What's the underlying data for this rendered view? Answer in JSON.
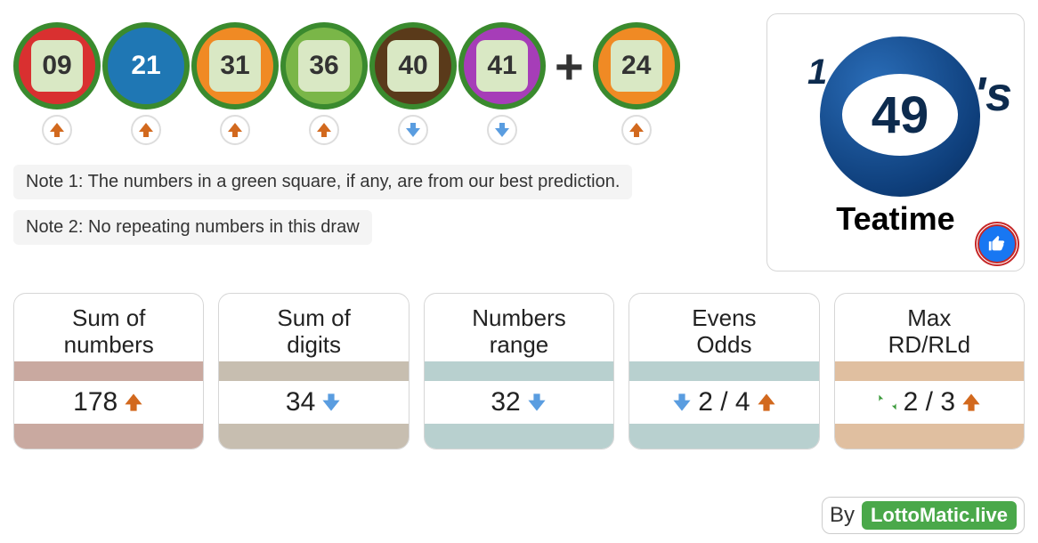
{
  "balls": [
    {
      "num": "09",
      "ring_color": "#3a8a2e",
      "fill_color": "#d93030",
      "square": true,
      "square_bg": "#d9e8c4",
      "text_color": "#333333",
      "arrow": "up"
    },
    {
      "num": "21",
      "ring_color": "#3a8a2e",
      "fill_color": "#1f77b4",
      "square": false,
      "text_color": "#ffffff",
      "arrow": "up"
    },
    {
      "num": "31",
      "ring_color": "#3a8a2e",
      "fill_color": "#f08a24",
      "square": true,
      "square_bg": "#d9e8c4",
      "text_color": "#333333",
      "arrow": "up"
    },
    {
      "num": "36",
      "ring_color": "#3a8a2e",
      "fill_color": "#7ab648",
      "square": true,
      "square_bg": "#d9e8c4",
      "text_color": "#333333",
      "arrow": "up"
    },
    {
      "num": "40",
      "ring_color": "#3a8a2e",
      "fill_color": "#5a3a1a",
      "square": true,
      "square_bg": "#d9e8c4",
      "text_color": "#333333",
      "arrow": "down"
    },
    {
      "num": "41",
      "ring_color": "#3a8a2e",
      "fill_color": "#a63db8",
      "square": true,
      "square_bg": "#d9e8c4",
      "text_color": "#333333",
      "arrow": "down"
    }
  ],
  "bonus_ball": {
    "num": "24",
    "ring_color": "#3a8a2e",
    "fill_color": "#f08a24",
    "square": true,
    "square_bg": "#d9e8c4",
    "text_color": "#333333",
    "arrow": "up"
  },
  "plus_symbol": "+",
  "notes": {
    "note1": "Note 1: The numbers in a green square, if any, are from our best prediction.",
    "note2": "Note 2: No repeating numbers in this draw"
  },
  "logo": {
    "big_text": "49",
    "apostrophe": "'s",
    "corner": "1",
    "subtitle": "Teatime"
  },
  "stats": [
    {
      "title_line1": "Sum of",
      "title_line2": "numbers",
      "value": "178",
      "left_icon": null,
      "right_icon": "up",
      "bar_color": "#c9a9a0"
    },
    {
      "title_line1": "Sum of",
      "title_line2": "digits",
      "value": "34",
      "left_icon": null,
      "right_icon": "down",
      "bar_color": "#c7beb0"
    },
    {
      "title_line1": "Numbers",
      "title_line2": "range",
      "value": "32",
      "left_icon": null,
      "right_icon": "down",
      "bar_color": "#b8d0cf"
    },
    {
      "title_line1": "Evens",
      "title_line2": "Odds",
      "value": "2 / 4",
      "left_icon": "down",
      "right_icon": "up",
      "bar_color": "#b8d0cf"
    },
    {
      "title_line1": "Max",
      "title_line2": "RD/RLd",
      "value": "2 / 3",
      "left_icon": "recycle",
      "right_icon": "up",
      "bar_color": "#e0bfa0"
    }
  ],
  "footer": {
    "by": "By",
    "site": "LottoMatic.live"
  },
  "arrow_colors": {
    "up": "#d2691e",
    "down": "#5a9de0",
    "recycle": "#3a9a3a"
  }
}
